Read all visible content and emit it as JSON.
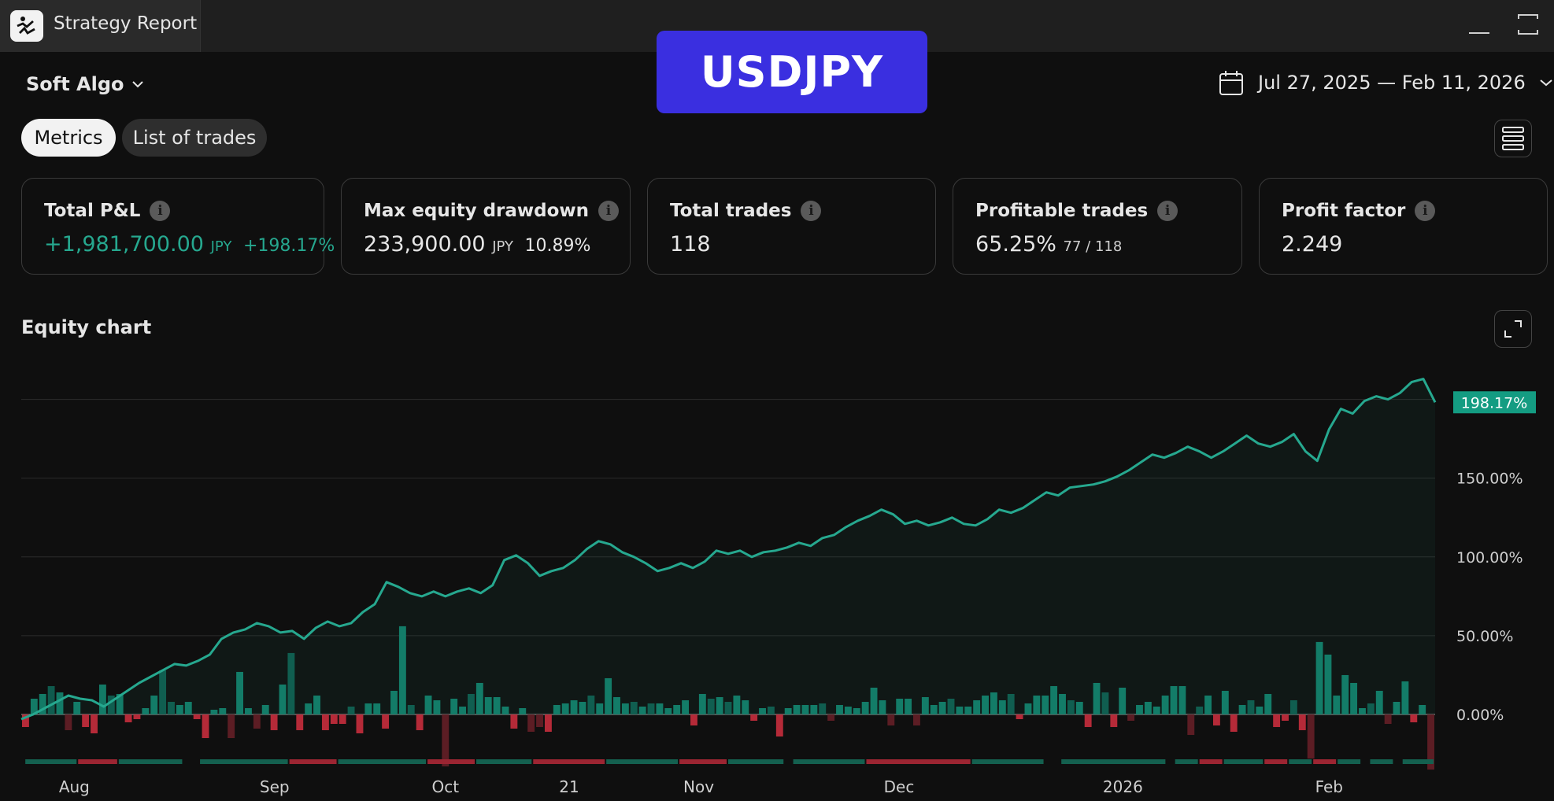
{
  "window": {
    "title": "Strategy Report",
    "symbol": "USDJPY"
  },
  "header": {
    "strategy_name": "Soft Algo",
    "date_range": "Jul 27, 2025 — Feb 11, 2026"
  },
  "tabs": [
    {
      "label": "Metrics",
      "active": true
    },
    {
      "label": "List of trades",
      "active": false
    }
  ],
  "metrics": {
    "total_pnl": {
      "title": "Total P&L",
      "value": "+1,981,700.00",
      "currency": "JPY",
      "percent": "+198.17%"
    },
    "max_drawdown": {
      "title": "Max equity drawdown",
      "value": "233,900.00",
      "currency": "JPY",
      "percent": "10.89%"
    },
    "total_trades": {
      "title": "Total trades",
      "value": "118"
    },
    "profitable_trades": {
      "title": "Profitable trades",
      "value": "65.25%",
      "ratio": "77 / 118"
    },
    "profit_factor": {
      "title": "Profit factor",
      "value": "2.249"
    }
  },
  "equity_chart": {
    "title": "Equity chart"
  },
  "colors": {
    "accent_green": "#26a88f",
    "loss_red": "#c23040",
    "badge_blue": "#3a2fe0"
  },
  "chart_data": {
    "type": "line",
    "title": "Equity chart",
    "ylabel": "",
    "ylim": [
      -30,
      215
    ],
    "ytick_labels": [
      "0.00%",
      "50.00%",
      "100.00%",
      "150.00%"
    ],
    "yticks": [
      0,
      50,
      100,
      150
    ],
    "last_value_label": "198.17%",
    "x_tick_labels": [
      "Aug",
      "Sep",
      "Oct",
      "21",
      "Nov",
      "Dec",
      "2026",
      "Feb"
    ],
    "x_tick_positions": [
      4.5,
      21.5,
      36,
      46.5,
      57.5,
      74.5,
      93.5,
      111
    ],
    "equity_percent": [
      -3,
      0,
      4,
      8,
      12,
      10,
      9,
      5,
      10,
      15,
      20,
      24,
      28,
      32,
      31,
      34,
      38,
      48,
      52,
      54,
      58,
      56,
      52,
      53,
      48,
      55,
      59,
      56,
      58,
      65,
      70,
      84,
      81,
      77,
      75,
      78,
      75,
      78,
      80,
      77,
      82,
      98,
      101,
      96,
      88,
      91,
      93,
      98,
      105,
      110,
      108,
      103,
      100,
      96,
      91,
      93,
      96,
      93,
      97,
      104,
      102,
      104,
      100,
      103,
      104,
      106,
      109,
      107,
      112,
      114,
      119,
      123,
      126,
      130,
      127,
      121,
      123,
      120,
      122,
      125,
      121,
      120,
      124,
      130,
      128,
      131,
      136,
      141,
      139,
      144,
      145,
      146,
      148,
      151,
      155,
      160,
      165,
      163,
      166,
      170,
      167,
      163,
      167,
      172,
      177,
      172,
      170,
      173,
      178,
      167,
      161,
      181,
      194,
      191,
      199,
      202,
      200,
      204,
      211,
      213,
      198.17
    ],
    "trade_pnl_percent": [
      -8,
      10,
      13,
      18,
      14,
      -10,
      8,
      -8,
      -12,
      19,
      12,
      13,
      -5,
      -3,
      4,
      12,
      28,
      8,
      6,
      8,
      -3,
      -15,
      3,
      4,
      -15,
      27,
      4,
      -9,
      6,
      -10,
      19,
      39,
      -10,
      7,
      12,
      -10,
      -6,
      -6,
      5,
      -12,
      7,
      7,
      -9,
      15,
      56,
      6,
      -10,
      12,
      9,
      -33,
      10,
      5,
      13,
      20,
      11,
      11,
      5,
      -9,
      4,
      -11,
      -8,
      -11,
      6,
      7,
      9,
      8,
      12,
      7,
      23,
      11,
      7,
      8,
      5,
      7,
      7,
      4,
      6,
      9,
      -7,
      13,
      10,
      11,
      8,
      12,
      9,
      -4,
      4,
      5,
      -14,
      4,
      6,
      6,
      6,
      7,
      -4,
      6,
      5,
      4,
      8,
      17,
      9,
      -7,
      10,
      10,
      -7,
      11,
      6,
      8,
      10,
      5,
      5,
      9,
      12,
      14,
      9,
      13,
      -3,
      7,
      12,
      12,
      18,
      13,
      9,
      8,
      -8,
      20,
      14,
      -8,
      17,
      -4,
      6,
      8,
      5,
      12,
      18,
      18,
      -13,
      5,
      12,
      -7,
      15,
      -11,
      6,
      9,
      5,
      13,
      -8,
      -4,
      9,
      -10,
      -28,
      46,
      38,
      12,
      25,
      20,
      4,
      7,
      15,
      -6,
      8,
      21,
      -5,
      6,
      -35
    ],
    "trade_strip": [
      {
        "start": 0.5,
        "end": 7,
        "win": true
      },
      {
        "start": 7,
        "end": 12,
        "win": false
      },
      {
        "start": 12,
        "end": 20,
        "win": true
      },
      {
        "start": 22,
        "end": 33,
        "win": true
      },
      {
        "start": 33,
        "end": 39,
        "win": false
      },
      {
        "start": 39,
        "end": 50,
        "win": true
      },
      {
        "start": 50,
        "end": 56,
        "win": false
      },
      {
        "start": 56,
        "end": 63,
        "win": true
      },
      {
        "start": 63,
        "end": 72,
        "win": false
      },
      {
        "start": 72,
        "end": 81,
        "win": true
      },
      {
        "start": 81,
        "end": 87,
        "win": false
      },
      {
        "start": 87,
        "end": 94,
        "win": true
      },
      {
        "start": 95,
        "end": 104,
        "win": true
      },
      {
        "start": 104,
        "end": 117,
        "win": false
      },
      {
        "start": 117,
        "end": 126,
        "win": true
      },
      {
        "start": 128,
        "end": 141,
        "win": true
      },
      {
        "start": 142,
        "end": 145,
        "win": true
      },
      {
        "start": 145,
        "end": 148,
        "win": false
      },
      {
        "start": 148,
        "end": 153,
        "win": true
      },
      {
        "start": 153,
        "end": 156,
        "win": false
      },
      {
        "start": 156,
        "end": 159,
        "win": true
      },
      {
        "start": 159,
        "end": 162,
        "win": false
      },
      {
        "start": 162,
        "end": 165,
        "win": true
      },
      {
        "start": 166,
        "end": 169,
        "win": true
      },
      {
        "start": 170,
        "end": 174,
        "win": true
      }
    ]
  }
}
